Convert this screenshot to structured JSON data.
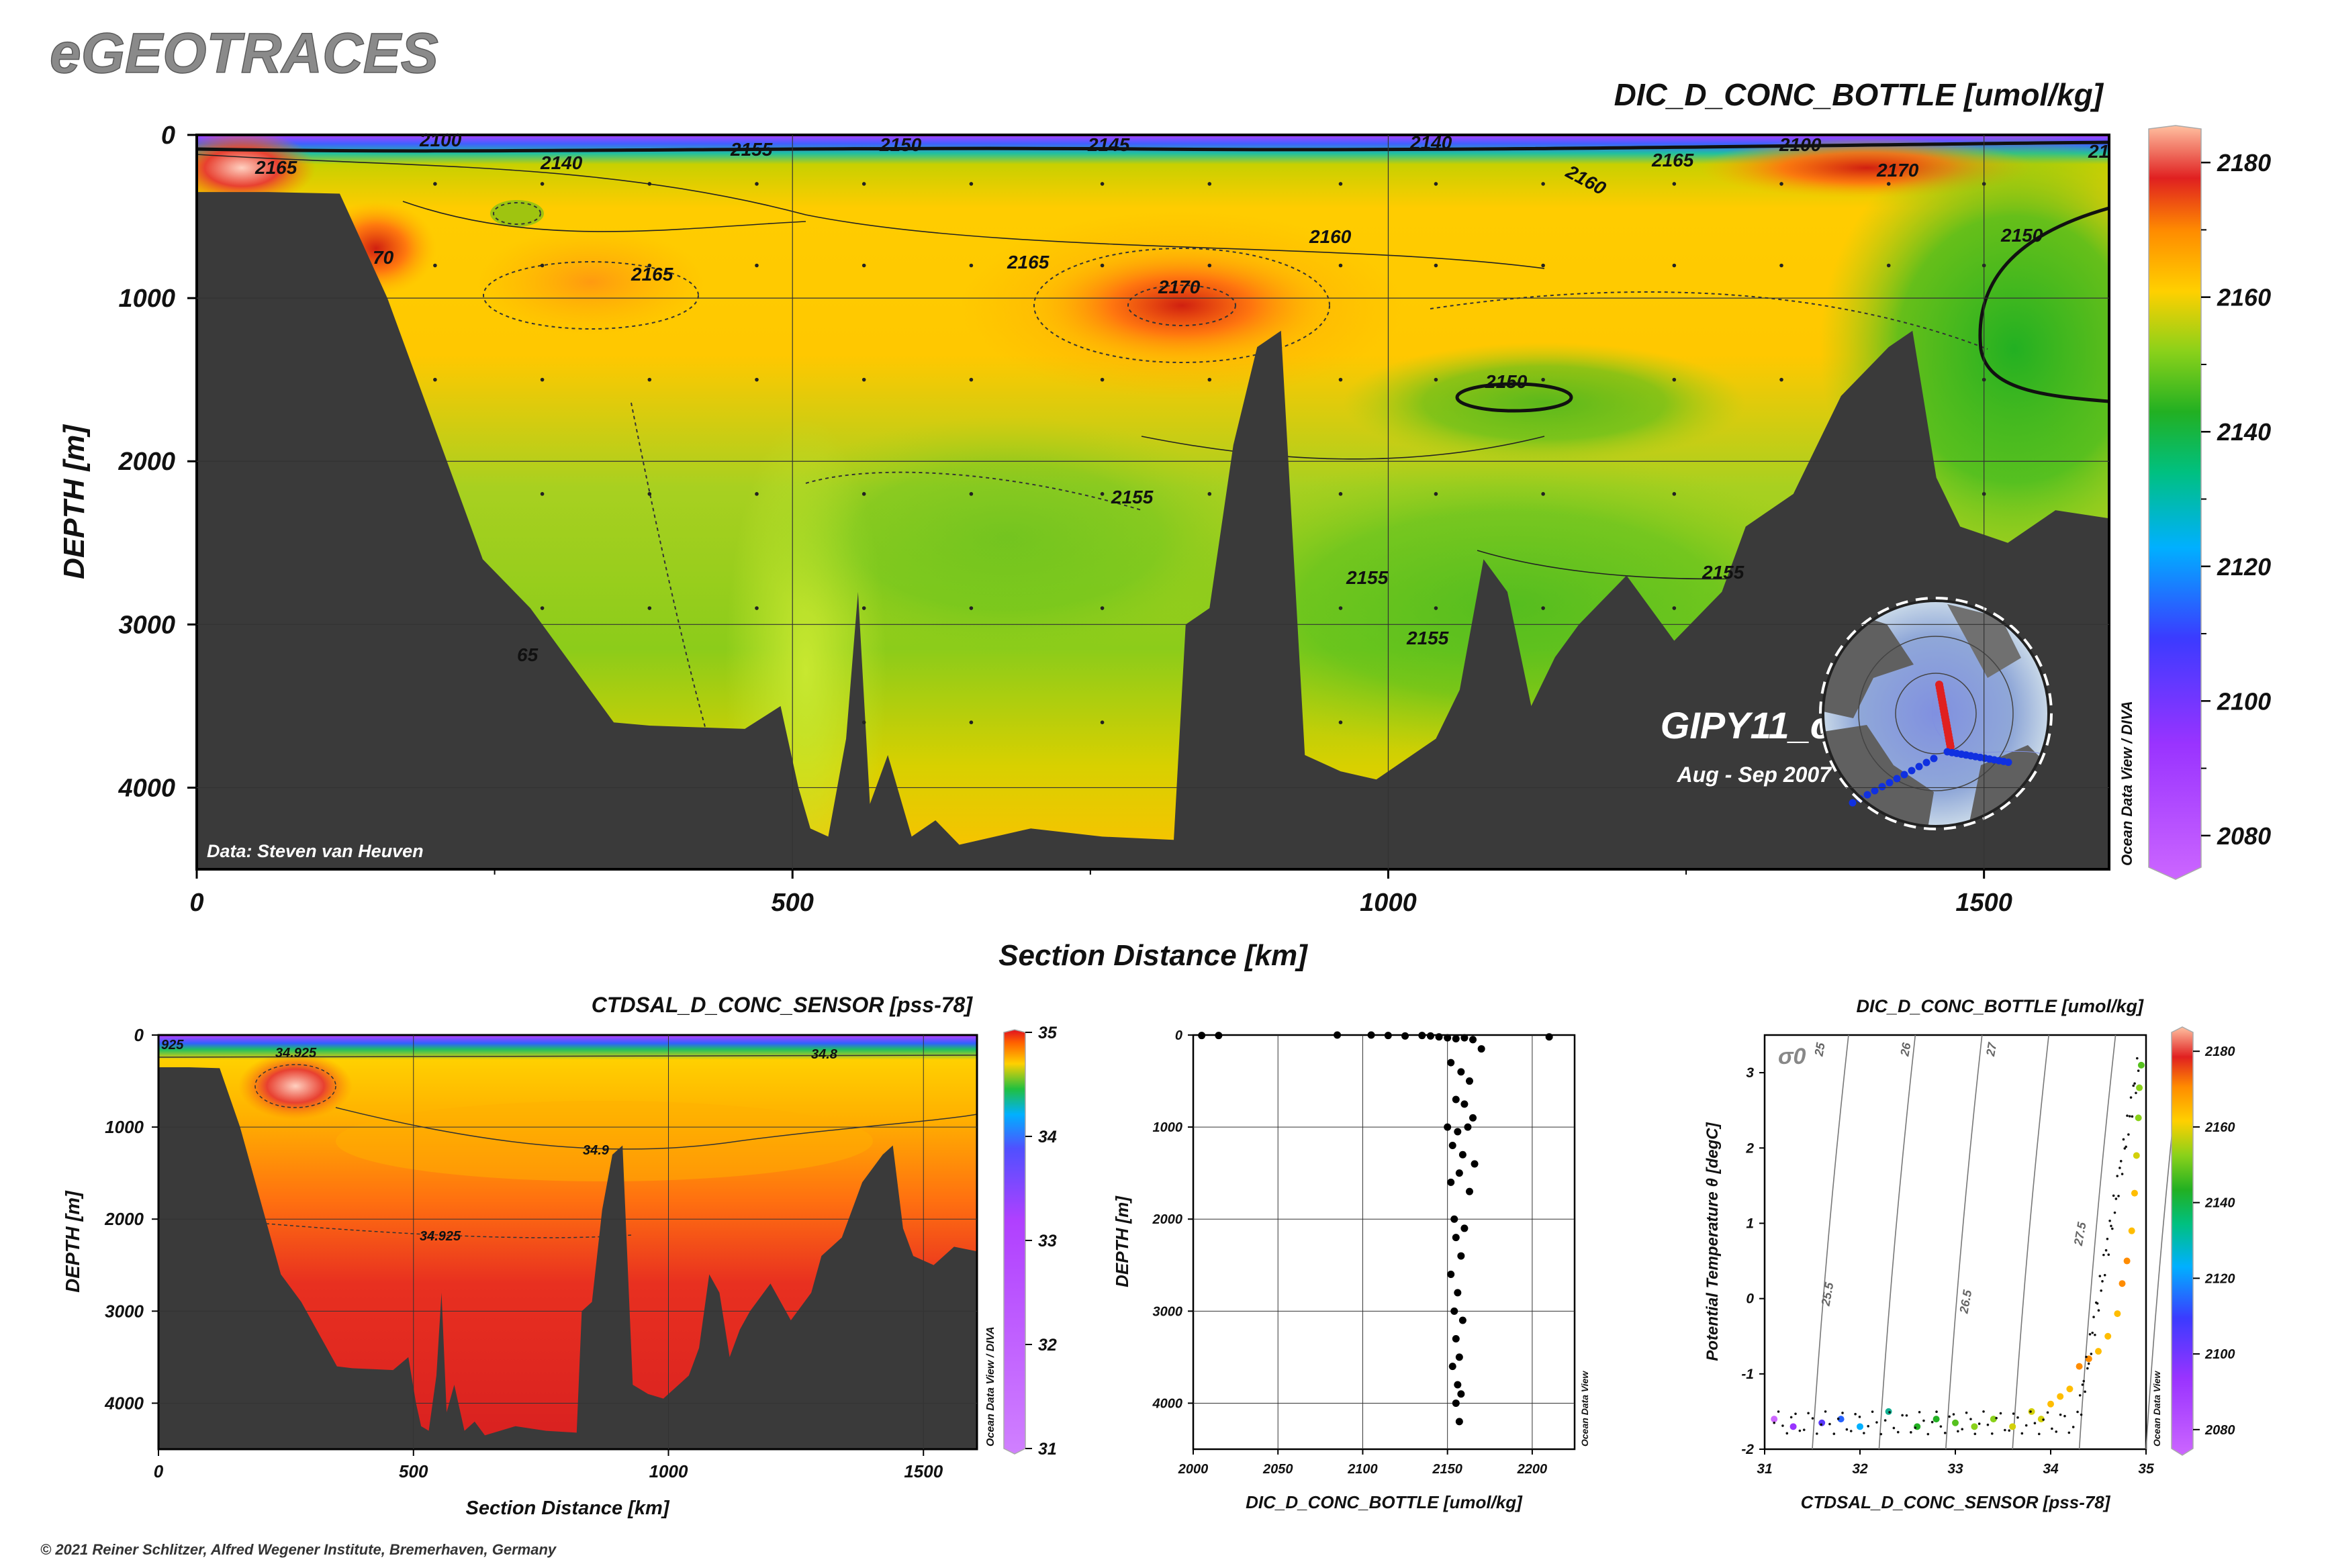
{
  "brand": "eGEOTRACES",
  "copyright": "© 2021 Reiner Schlitzer, Alfred Wegener Institute, Bremerhaven, Germany",
  "main_section": {
    "title": "DIC_D_CONC_BOTTLE [umol/kg]",
    "xlabel": "Section Distance [km]",
    "ylabel": "DEPTH [m]",
    "x_ticks": [
      "0",
      "500",
      "1000",
      "1500"
    ],
    "y_ticks": [
      "0",
      "1000",
      "2000",
      "3000",
      "4000"
    ],
    "colorbar_ticks": [
      "2180",
      "2160",
      "2140",
      "2120",
      "2100",
      "2080"
    ],
    "cruise": "GIPY11_c",
    "period": "Aug - Sep 2007",
    "data_credit": "Data: Steven van Heuven",
    "odv_label": "Ocean Data View / DIVA",
    "contour_labels": [
      "2100",
      "2140",
      "2155",
      "2150",
      "2145",
      "2140",
      "2160",
      "2165",
      "2100",
      "2170",
      "21",
      "2165",
      "70",
      "2165",
      "2165",
      "2170",
      "2160",
      "2150",
      "2150",
      "2155",
      "2155",
      "2155",
      "2155",
      "65"
    ]
  },
  "salinity_section": {
    "title": "CTDSAL_D_CONC_SENSOR [pss-78]",
    "xlabel": "Section Distance [km]",
    "ylabel": "DEPTH [m]",
    "x_ticks": [
      "0",
      "500",
      "1000",
      "1500"
    ],
    "y_ticks": [
      "0",
      "1000",
      "2000",
      "3000",
      "4000"
    ],
    "colorbar_ticks": [
      "35",
      "34",
      "33",
      "32",
      "31"
    ],
    "odv_label": "Ocean Data View / DIVA",
    "contour_labels": [
      "34.925",
      "34.8",
      "34.9",
      "34.925",
      "925"
    ]
  },
  "scatter_profile": {
    "xlabel": "DIC_D_CONC_BOTTLE [umol/kg]",
    "ylabel": "DEPTH [m]",
    "x_ticks": [
      "2000",
      "2050",
      "2100",
      "2150",
      "2200"
    ],
    "y_ticks": [
      "0",
      "1000",
      "2000",
      "3000",
      "4000"
    ],
    "odv_label": "Ocean Data View"
  },
  "ts_plot": {
    "title": "DIC_D_CONC_BOTTLE [umol/kg]",
    "xlabel": "CTDSAL_D_CONC_SENSOR [pss-78]",
    "ylabel": "Potential Temperature θ [degC]",
    "x_ticks": [
      "31",
      "32",
      "33",
      "34",
      "35"
    ],
    "y_ticks": [
      "3",
      "2",
      "1",
      "0",
      "-1",
      "-2"
    ],
    "colorbar_ticks": [
      "2180",
      "2160",
      "2140",
      "2120",
      "2100",
      "2080"
    ],
    "sigma_label": "σ0",
    "isopycnal_labels": [
      "25",
      "26",
      "27",
      "25.5",
      "26.5",
      "27.5"
    ],
    "odv_label": "Ocean Data View"
  },
  "chart_data": [
    {
      "type": "heatmap",
      "title": "DIC_D_CONC_BOTTLE [umol/kg]",
      "xlabel": "Section Distance [km]",
      "ylabel": "DEPTH [m]",
      "xlim": [
        0,
        1605
      ],
      "ylim": [
        4500,
        0
      ],
      "colorbar": {
        "min": 2075,
        "max": 2185,
        "ticks": [
          2080,
          2100,
          2120,
          2140,
          2160,
          2180
        ]
      },
      "bathymetry": {
        "x": [
          0,
          60,
          120,
          160,
          200,
          240,
          280,
          320,
          350,
          380,
          420,
          460,
          490,
          505,
          515,
          530,
          545,
          555,
          565,
          580,
          600,
          620,
          640,
          700,
          760,
          820,
          830,
          850,
          870,
          890,
          910,
          930,
          960,
          990,
          1000,
          1040,
          1060,
          1080,
          1100,
          1120,
          1140,
          1160,
          1200,
          1240,
          1280,
          1300,
          1340,
          1380,
          1420,
          1440,
          1460,
          1480,
          1520,
          1560,
          1605
        ],
        "depth": [
          350,
          350,
          360,
          1000,
          1800,
          2600,
          2900,
          3300,
          3600,
          3620,
          3630,
          3640,
          3500,
          4000,
          4250,
          4300,
          3700,
          2800,
          4100,
          3800,
          4300,
          4200,
          4350,
          4250,
          4300,
          4320,
          3000,
          2900,
          1900,
          1300,
          1200,
          3800,
          3900,
          3950,
          3900,
          3700,
          3400,
          2600,
          2800,
          3500,
          3200,
          3000,
          2700,
          3100,
          2800,
          2400,
          2200,
          1600,
          1300,
          1200,
          2100,
          2400,
          2500,
          2300,
          2350
        ]
      },
      "contours": [
        {
          "label": 2150,
          "note": "closed contour near 1100 km, 1600 m"
        },
        {
          "label": 2170,
          "note": "maximum near 830 km, 1000 m"
        },
        {
          "label": 2165,
          "note": "maximum near 380 km, 900 m"
        }
      ]
    },
    {
      "type": "heatmap",
      "title": "CTDSAL_D_CONC_SENSOR [pss-78]",
      "xlabel": "Section Distance [km]",
      "ylabel": "DEPTH [m]",
      "xlim": [
        0,
        1605
      ],
      "ylim": [
        4500,
        0
      ],
      "colorbar": {
        "min": 31,
        "max": 35,
        "ticks": [
          31,
          32,
          33,
          34,
          35
        ]
      }
    },
    {
      "type": "scatter",
      "xlabel": "DIC_D_CONC_BOTTLE [umol/kg]",
      "ylabel": "DEPTH [m]",
      "xlim": [
        2000,
        2225
      ],
      "ylim": [
        4500,
        0
      ],
      "x": [
        2005,
        2015,
        2085,
        2105,
        2115,
        2125,
        2135,
        2140,
        2145,
        2150,
        2155,
        2160,
        2165,
        2170,
        2210,
        2152,
        2158,
        2163,
        2155,
        2160,
        2165,
        2150,
        2156,
        2162,
        2153,
        2159,
        2166,
        2152,
        2157,
        2163,
        2154,
        2160,
        2155,
        2158,
        2152,
        2156,
        2154,
        2159,
        2155,
        2157,
        2153,
        2156,
        2158,
        2155,
        2157
      ],
      "y": [
        5,
        5,
        0,
        0,
        5,
        10,
        5,
        10,
        20,
        30,
        40,
        30,
        50,
        150,
        20,
        300,
        400,
        500,
        700,
        750,
        900,
        1000,
        1050,
        1000,
        1200,
        1300,
        1400,
        1600,
        1500,
        1700,
        2000,
        2100,
        2200,
        2400,
        2600,
        2800,
        3000,
        3100,
        3300,
        3500,
        3600,
        3800,
        3900,
        4000,
        4200
      ]
    },
    {
      "type": "scatter",
      "title": "DIC_D_CONC_BOTTLE [umol/kg]",
      "xlabel": "CTDSAL_D_CONC_SENSOR [pss-78]",
      "ylabel": "Potential Temperature θ [degC]",
      "xlim": [
        31,
        35
      ],
      "ylim": [
        -2,
        3.5
      ],
      "x": [
        31.1,
        31.3,
        31.6,
        31.8,
        32.0,
        32.3,
        32.6,
        32.8,
        33.0,
        33.2,
        33.4,
        33.6,
        33.8,
        33.9,
        34.0,
        34.1,
        34.2,
        34.3,
        34.4,
        34.5,
        34.6,
        34.7,
        34.75,
        34.8,
        34.85,
        34.88,
        34.9,
        34.92,
        34.93,
        34.95
      ],
      "y": [
        -1.6,
        -1.7,
        -1.65,
        -1.6,
        -1.7,
        -1.5,
        -1.7,
        -1.6,
        -1.65,
        -1.7,
        -1.6,
        -1.7,
        -1.5,
        -1.6,
        -1.4,
        -1.3,
        -1.2,
        -0.9,
        -0.8,
        -0.7,
        -0.5,
        -0.2,
        0.2,
        0.5,
        0.9,
        1.4,
        1.9,
        2.4,
        2.8,
        3.1
      ],
      "colors_dic": [
        2080,
        2100,
        2110,
        2120,
        2130,
        2135,
        2140,
        2140,
        2145,
        2150,
        2150,
        2155,
        2155,
        2155,
        2160,
        2160,
        2160,
        2165,
        2165,
        2160,
        2160,
        2160,
        2165,
        2165,
        2160,
        2160,
        2155,
        2150,
        2150,
        2145
      ]
    }
  ]
}
